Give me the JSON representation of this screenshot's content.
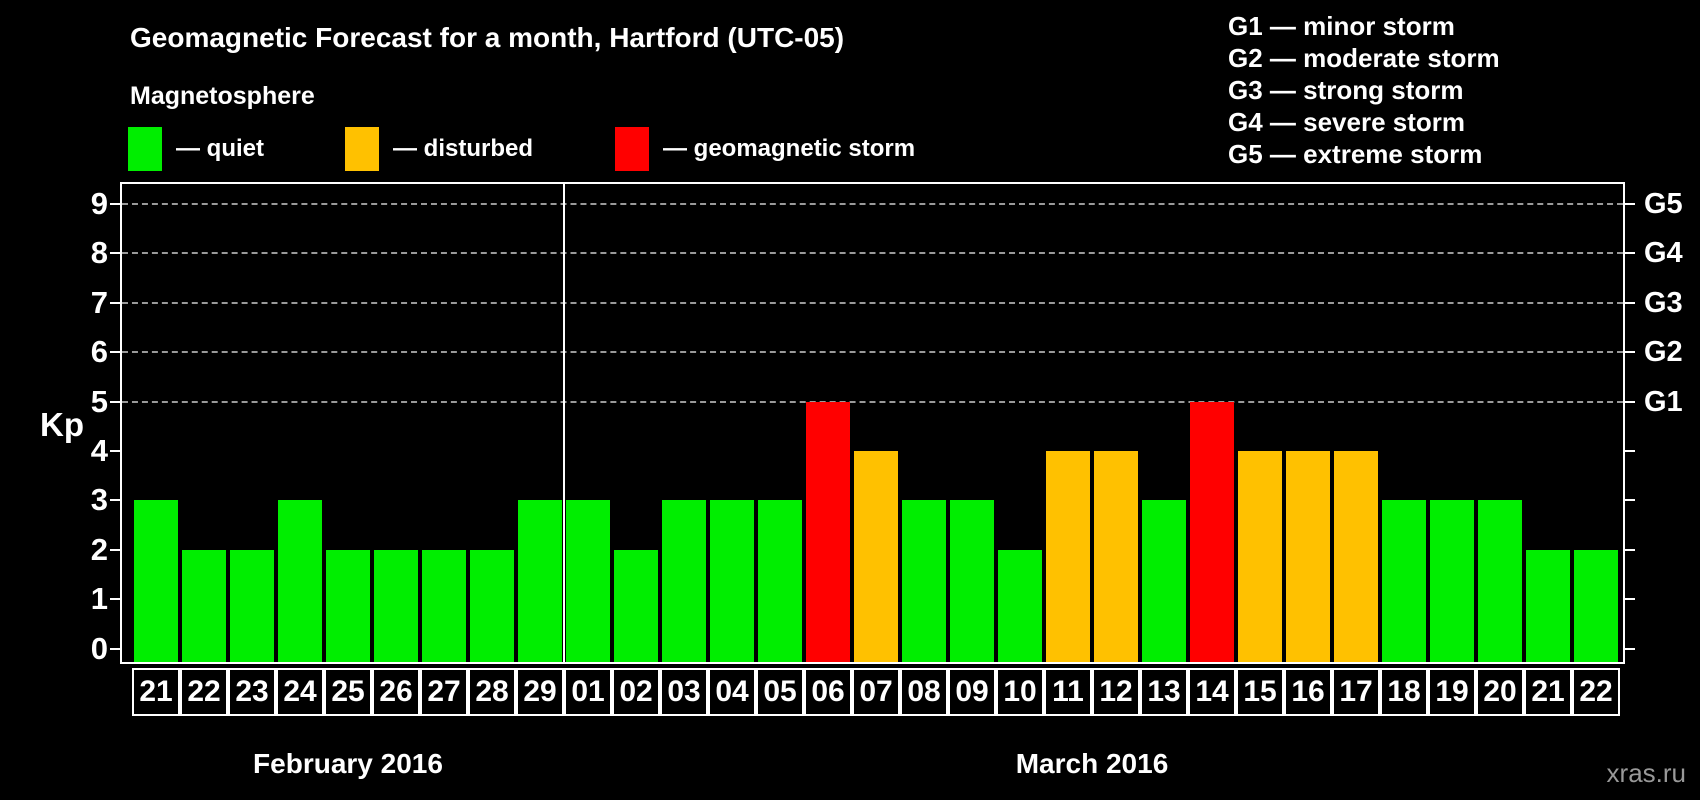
{
  "header": {
    "title": "Geomagnetic Forecast for a month, Hartford (UTC-05)",
    "subtitle": "Magnetosphere"
  },
  "legend": {
    "items": [
      {
        "label": "— quiet",
        "status": "quiet",
        "color": "#00EE00"
      },
      {
        "label": "— disturbed",
        "status": "disturbed",
        "color": "#FFC100"
      },
      {
        "label": "— geomagnetic storm",
        "status": "storm",
        "color": "#FF0000"
      }
    ]
  },
  "g_scale": {
    "items": [
      "G1 — minor storm",
      "G2 — moderate storm",
      "G3 — strong storm",
      "G4 — severe storm",
      "G5 — extreme storm"
    ]
  },
  "chart_data": {
    "type": "bar",
    "title": "Geomagnetic Forecast for a month, Hartford (UTC-05)",
    "ylabel": "Kp",
    "ylim": [
      0,
      9
    ],
    "yticks": [
      0,
      1,
      2,
      3,
      4,
      5,
      6,
      7,
      8,
      9
    ],
    "grid": "dashed horizontal lines at Kp 5-9 only",
    "legend_position": "top",
    "right_axis": [
      {
        "kp": 5,
        "label": "G1"
      },
      {
        "kp": 6,
        "label": "G2"
      },
      {
        "kp": 7,
        "label": "G3"
      },
      {
        "kp": 8,
        "label": "G4"
      },
      {
        "kp": 9,
        "label": "G5"
      }
    ],
    "categories": [
      "21",
      "22",
      "23",
      "24",
      "25",
      "26",
      "27",
      "28",
      "29",
      "01",
      "02",
      "03",
      "04",
      "05",
      "06",
      "07",
      "08",
      "09",
      "10",
      "11",
      "12",
      "13",
      "14",
      "15",
      "16",
      "17",
      "18",
      "19",
      "20",
      "21",
      "22"
    ],
    "values": [
      3,
      2,
      2,
      3,
      2,
      2,
      2,
      2,
      3,
      3,
      2,
      3,
      3,
      3,
      5,
      4,
      3,
      3,
      2,
      4,
      4,
      3,
      5,
      4,
      4,
      4,
      3,
      3,
      3,
      2,
      2
    ],
    "statuses": [
      "quiet",
      "quiet",
      "quiet",
      "quiet",
      "quiet",
      "quiet",
      "quiet",
      "quiet",
      "quiet",
      "quiet",
      "quiet",
      "quiet",
      "quiet",
      "quiet",
      "storm",
      "disturbed",
      "quiet",
      "quiet",
      "quiet",
      "disturbed",
      "disturbed",
      "quiet",
      "storm",
      "disturbed",
      "disturbed",
      "disturbed",
      "quiet",
      "quiet",
      "quiet",
      "quiet",
      "quiet"
    ],
    "colors": {
      "quiet": "#00EE00",
      "disturbed": "#FFC100",
      "storm": "#FF0000"
    },
    "months": [
      {
        "label": "February 2016",
        "days": 9
      },
      {
        "label": "March 2016",
        "days": 22
      }
    ]
  },
  "footer": {
    "watermark": "xras.ru"
  }
}
